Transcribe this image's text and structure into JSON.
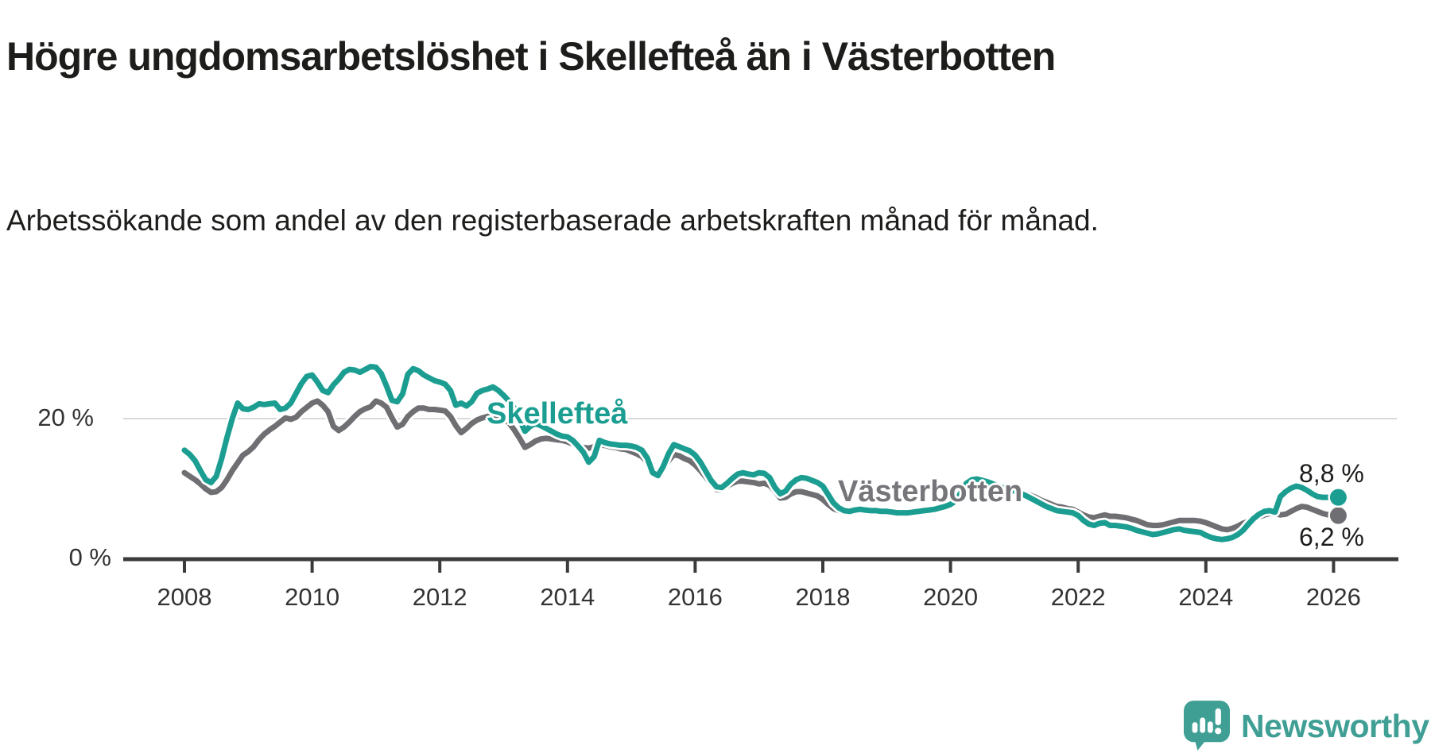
{
  "header": {
    "title": "Högre ungdomsarbetslöshet i Skellefteå än i Västerbotten",
    "subtitle": "Arbetssökande som andel av den registerbaserade arbetskraften månad för månad."
  },
  "chart": {
    "y_axis": {
      "top_label": "20 %",
      "zero_label": "0 %"
    },
    "series_labels": {
      "skelleftea": "Skellefteå",
      "vasterbotten": "Västerbotten"
    },
    "end_labels": {
      "skelleftea": "8,8 %",
      "vasterbotten": "6,2 %"
    },
    "colors": {
      "skelleftea": "#1b9e91",
      "vasterbotten": "#6f6f73",
      "axis": "#3b3b3b",
      "gridline": "#d9d9d9"
    }
  },
  "chart_data": {
    "type": "line",
    "title": "Högre ungdomsarbetslöshet i Skellefteå än i Västerbotten",
    "unit": "%",
    "x_start_year": 2008,
    "x_interval": "monthly",
    "x_ticks": [
      2008,
      2010,
      2012,
      2014,
      2016,
      2018,
      2020,
      2022,
      2024,
      2026
    ],
    "ylim": [
      0,
      30
    ],
    "y_gridlines": [
      20
    ],
    "y_tick_labels": [
      "20 %",
      "0 %"
    ],
    "grid": "horizontal-only",
    "legend_position": "inline-labels",
    "series": [
      {
        "name": "Skellefteå",
        "color": "#1b9e91",
        "end_label": "8,8 %",
        "end_value": 8.8,
        "values": [
          15.5,
          14.9,
          14.0,
          12.6,
          11.3,
          10.9,
          11.8,
          14.3,
          17.3,
          20.0,
          22.2,
          21.4,
          21.3,
          21.6,
          22.1,
          22.0,
          22.1,
          22.2,
          21.3,
          21.5,
          22.2,
          23.6,
          25.0,
          26.0,
          26.2,
          25.2,
          24.0,
          23.7,
          24.8,
          25.6,
          26.6,
          27.0,
          26.9,
          26.6,
          27.0,
          27.4,
          27.3,
          26.4,
          24.6,
          22.6,
          22.4,
          23.5,
          26.3,
          27.1,
          26.8,
          26.2,
          25.8,
          25.4,
          25.2,
          24.9,
          24.0,
          21.9,
          22.2,
          21.8,
          22.4,
          23.6,
          24.0,
          24.2,
          24.5,
          24.0,
          23.3,
          22.5,
          21.5,
          19.8,
          18.2,
          18.9,
          19.3,
          19.0,
          18.6,
          18.2,
          17.8,
          17.5,
          17.4,
          16.9,
          16.1,
          15.2,
          13.8,
          14.6,
          16.9,
          16.6,
          16.4,
          16.3,
          16.2,
          16.2,
          16.1,
          15.9,
          15.5,
          14.4,
          12.3,
          11.9,
          13.2,
          15.0,
          16.3,
          16.0,
          15.7,
          15.4,
          14.8,
          13.8,
          12.5,
          11.2,
          10.3,
          10.2,
          10.8,
          11.5,
          12.1,
          12.3,
          12.1,
          12.0,
          12.3,
          12.2,
          11.6,
          10.2,
          9.3,
          9.7,
          10.7,
          11.3,
          11.6,
          11.5,
          11.2,
          10.9,
          10.4,
          9.2,
          8.0,
          7.3,
          6.9,
          6.8,
          7.0,
          7.1,
          7.0,
          6.9,
          6.9,
          6.8,
          6.8,
          6.7,
          6.6,
          6.6,
          6.6,
          6.7,
          6.8,
          6.9,
          7.0,
          7.1,
          7.3,
          7.5,
          7.8,
          8.3,
          9.5,
          10.8,
          11.3,
          11.4,
          11.2,
          11.0,
          10.7,
          10.4,
          10.1,
          9.9,
          9.7,
          9.4,
          9.1,
          8.7,
          8.3,
          7.9,
          7.5,
          7.2,
          6.9,
          6.8,
          6.7,
          6.6,
          6.2,
          5.5,
          5.0,
          4.8,
          5.1,
          5.2,
          4.8,
          4.8,
          4.7,
          4.6,
          4.4,
          4.1,
          3.9,
          3.7,
          3.5,
          3.6,
          3.8,
          4.0,
          4.2,
          4.3,
          4.1,
          4.0,
          3.9,
          3.8,
          3.4,
          3.1,
          2.9,
          2.8,
          2.9,
          3.1,
          3.5,
          4.1,
          5.0,
          5.8,
          6.4,
          6.8,
          6.9,
          6.7,
          8.9,
          9.6,
          10.1,
          10.4,
          10.2,
          9.8,
          9.3,
          8.9,
          8.8,
          8.8,
          8.8
        ]
      },
      {
        "name": "Västerbotten",
        "color": "#6f6f73",
        "end_label": "6,2 %",
        "end_value": 6.2,
        "values": [
          12.3,
          11.8,
          11.3,
          10.7,
          10.0,
          9.5,
          9.6,
          10.2,
          11.3,
          12.6,
          13.7,
          14.8,
          15.3,
          16.0,
          17.0,
          17.8,
          18.4,
          18.9,
          19.5,
          20.1,
          19.9,
          20.2,
          21.0,
          21.6,
          22.2,
          22.5,
          21.9,
          21.0,
          18.9,
          18.3,
          18.8,
          19.5,
          20.3,
          21.0,
          21.4,
          21.7,
          22.5,
          22.2,
          21.6,
          20.1,
          18.8,
          19.2,
          20.3,
          21.0,
          21.5,
          21.5,
          21.3,
          21.3,
          21.2,
          21.1,
          20.3,
          19.0,
          18.0,
          18.6,
          19.3,
          19.8,
          20.1,
          20.3,
          20.5,
          20.4,
          20.2,
          19.4,
          18.4,
          17.2,
          15.9,
          16.3,
          16.8,
          17.1,
          17.2,
          17.1,
          17.0,
          16.9,
          16.7,
          16.4,
          16.1,
          15.9,
          15.8,
          16.0,
          16.2,
          16.2,
          16.0,
          15.9,
          15.7,
          15.6,
          15.3,
          15.0,
          14.6,
          13.8,
          12.6,
          12.0,
          12.8,
          14.0,
          14.9,
          14.7,
          14.3,
          14.0,
          13.4,
          12.6,
          11.7,
          10.7,
          9.9,
          9.9,
          10.4,
          10.8,
          11.1,
          11.1,
          11.0,
          10.9,
          10.7,
          10.8,
          10.5,
          9.7,
          8.7,
          8.8,
          9.3,
          9.6,
          9.6,
          9.4,
          9.2,
          9.0,
          8.5,
          7.8,
          7.2,
          6.9,
          6.8,
          6.7,
          6.8,
          6.9,
          6.9,
          6.9,
          6.9,
          6.9,
          7.0,
          6.9,
          6.9,
          6.8,
          6.8,
          6.9,
          7.0,
          7.1,
          7.2,
          7.3,
          7.5,
          7.7,
          8.0,
          8.5,
          9.6,
          10.7,
          11.0,
          11.0,
          10.9,
          10.7,
          10.5,
          10.3,
          10.1,
          10.0,
          9.9,
          9.7,
          9.4,
          9.1,
          8.8,
          8.4,
          8.1,
          7.8,
          7.5,
          7.4,
          7.2,
          7.1,
          6.7,
          6.3,
          6.0,
          5.9,
          6.1,
          6.3,
          6.1,
          6.1,
          6.0,
          5.9,
          5.7,
          5.5,
          5.2,
          4.9,
          4.8,
          4.8,
          4.9,
          5.1,
          5.3,
          5.5,
          5.5,
          5.5,
          5.5,
          5.4,
          5.2,
          4.9,
          4.6,
          4.3,
          4.2,
          4.4,
          4.7,
          5.1,
          5.4,
          5.7,
          6.0,
          6.3,
          6.5,
          6.5,
          6.3,
          6.4,
          6.8,
          7.2,
          7.5,
          7.4,
          7.1,
          6.8,
          6.5,
          6.3,
          6.2
        ]
      }
    ]
  },
  "footer": {
    "brand": "Newsworthy"
  }
}
